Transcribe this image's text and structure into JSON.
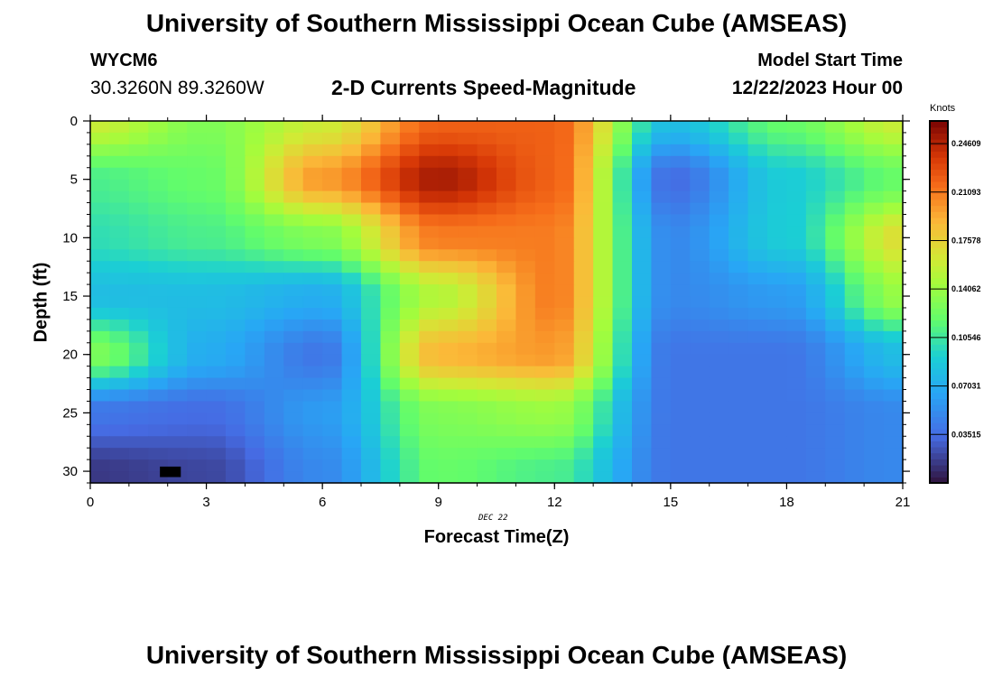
{
  "header": {
    "title": "University of Southern Mississippi Ocean Cube (AMSEAS)",
    "station_id": "WYCM6",
    "coordinates": "30.3260N  89.3260W",
    "plot_title": "2-D Currents Speed-Magnitude",
    "model_start_label": "Model Start Time",
    "model_start_value": "12/22/2023 Hour 00"
  },
  "footer": {
    "title": "University of Southern Mississippi Ocean Cube (AMSEAS)"
  },
  "chart_data": {
    "type": "heatmap",
    "xlabel": "Forecast Time(Z)",
    "ylabel": "Depth (ft)",
    "date_label": "DEC 22",
    "xlim": [
      0,
      21
    ],
    "ylim": [
      0,
      31
    ],
    "x_ticks": [
      "0",
      "3",
      "6",
      "9",
      "12",
      "15",
      "18",
      "21"
    ],
    "y_ticks": [
      "0",
      "5",
      "10",
      "15",
      "20",
      "25",
      "30"
    ],
    "colorbar": {
      "unit": "Knots",
      "range": [
        0,
        0.2625
      ],
      "tick_labels": [
        "0.24609",
        "0.21093",
        "0.17578",
        "0.14062",
        "0.10546",
        "0.07031",
        "0.03515"
      ],
      "tick_values": [
        0.24609,
        0.21093,
        0.17578,
        0.14062,
        0.10546,
        0.07031,
        0.03515
      ]
    },
    "speed_knots_grid": {
      "depths_ft": [
        0,
        5,
        10,
        15,
        20,
        25,
        30
      ],
      "hours": [
        0,
        3,
        6,
        9,
        12,
        15,
        18,
        21
      ],
      "rows": [
        [
          0.16,
          0.13,
          0.16,
          0.22,
          0.22,
          0.08,
          0.12,
          0.16
        ],
        [
          0.11,
          0.12,
          0.2,
          0.25,
          0.22,
          0.035,
          0.09,
          0.12
        ],
        [
          0.1,
          0.11,
          0.13,
          0.21,
          0.21,
          0.05,
          0.09,
          0.17
        ],
        [
          0.08,
          0.08,
          0.07,
          0.15,
          0.21,
          0.05,
          0.06,
          0.14
        ],
        [
          0.13,
          0.07,
          0.04,
          0.19,
          0.2,
          0.04,
          0.04,
          0.08
        ],
        [
          0.04,
          0.035,
          0.06,
          0.13,
          0.14,
          0.04,
          0.04,
          0.05
        ],
        [
          0.015,
          0.02,
          0.05,
          0.12,
          0.11,
          0.04,
          0.04,
          0.05
        ]
      ]
    }
  }
}
